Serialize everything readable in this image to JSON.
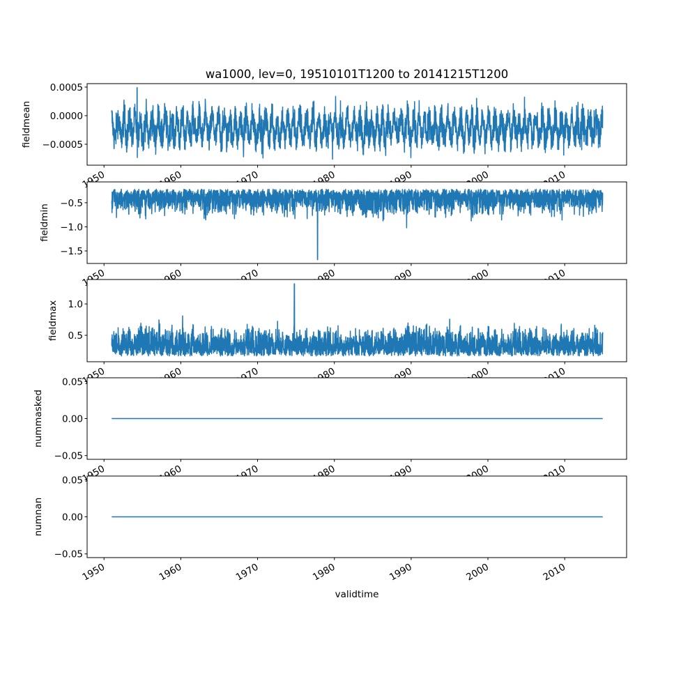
{
  "chart_data": {
    "type": "line",
    "title": "wa1000, lev=0, 19510101T1200 to 20141215T1200",
    "xlabel": "validtime",
    "xlim": [
      1947.8,
      2018.06
    ],
    "xticks": [
      1950,
      1960,
      1970,
      1980,
      1990,
      2000,
      2010
    ],
    "xticklabels": [
      "1950",
      "1960",
      "1970",
      "1980",
      "1990",
      "2000",
      "2010"
    ],
    "x_range": [
      1951.0,
      2014.95
    ],
    "grid": false,
    "color": "#1f77b4",
    "panels": [
      {
        "ylabel": "fieldmean",
        "ylim": [
          -0.000866,
          0.00056
        ],
        "yticks": [
          0.0005,
          0.0,
          -0.0005
        ],
        "yticklabels": [
          "0.0005",
          "0.0000",
          "−0.0005"
        ],
        "approx_mean": -0.00022,
        "approx_min": -0.0008,
        "approx_max": 0.00049,
        "peak_at": 1954.3
      },
      {
        "ylabel": "fieldmin",
        "ylim": [
          -1.76,
          -0.068
        ],
        "yticks": [
          -0.5,
          -1.0,
          -1.5
        ],
        "yticklabels": [
          "−0.5",
          "−1.0",
          "−1.5"
        ],
        "approx_mean": -0.55,
        "approx_min": -1.68,
        "approx_max": -0.18,
        "peak_at": 1977.8
      },
      {
        "ylabel": "fieldmax",
        "ylim": [
          0.078,
          1.39
        ],
        "yticks": [
          1.0,
          0.5
        ],
        "yticklabels": [
          "1.0",
          "0.5"
        ],
        "approx_mean": 0.35,
        "approx_min": 0.13,
        "approx_max": 1.32,
        "peak_at": 1974.8
      },
      {
        "ylabel": "nummasked",
        "ylim": [
          -0.055,
          0.055
        ],
        "yticks": [
          0.05,
          0.0,
          -0.05
        ],
        "yticklabels": [
          "0.05",
          "0.00",
          "−0.05"
        ],
        "constant": 0
      },
      {
        "ylabel": "numnan",
        "ylim": [
          -0.055,
          0.055
        ],
        "yticks": [
          0.05,
          0.0,
          -0.05
        ],
        "yticklabels": [
          "0.05",
          "0.00",
          "−0.05"
        ],
        "constant": 0
      }
    ]
  }
}
